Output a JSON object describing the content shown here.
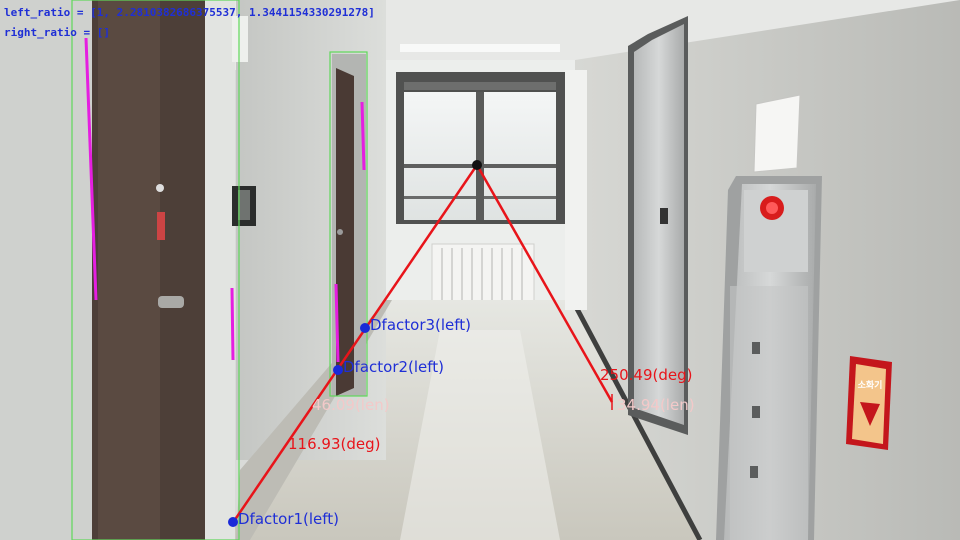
{
  "debug": {
    "left_ratio": "left_ratio = [1, 2.2810382686375537, 1.3441154330291278]",
    "right_ratio": "right_ratio = []"
  },
  "labels": {
    "dfactor1": "Dfactor1(left)",
    "dfactor2": "Dfactor2(left)",
    "dfactor3": "Dfactor3(left)",
    "left_angle": "116.93(deg)",
    "left_len": "46.09(len)",
    "right_angle": "250.49(deg)",
    "right_len": "34.94(len)"
  },
  "sign": {
    "text": "소화기"
  },
  "colors": {
    "line": "#e8141a",
    "point": "#1a2ad8",
    "text_blue": "#1f2fd6",
    "text_pale": "#f3c9c9",
    "box": "#5fd85a",
    "magenta": "#e51ee0"
  }
}
